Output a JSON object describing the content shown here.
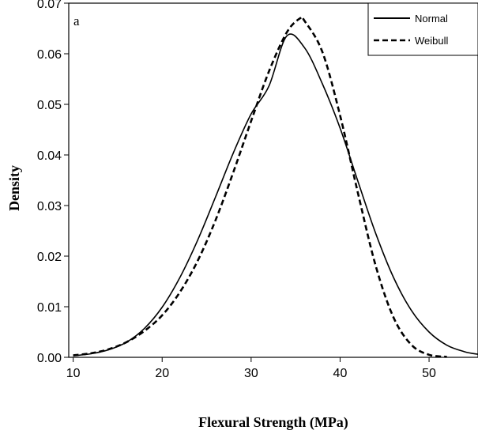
{
  "chart_data": {
    "type": "line",
    "title": "",
    "panel_label": "a",
    "xlabel": "Flexural Strength (MPa)",
    "ylabel": "Density",
    "xlim": [
      9.5,
      55.5
    ],
    "ylim": [
      0,
      0.07
    ],
    "x_ticks": [
      10,
      20,
      30,
      40,
      50
    ],
    "x_tick_labels": [
      "10",
      "20",
      "30",
      "40",
      "50"
    ],
    "y_ticks": [
      0,
      0.01,
      0.02,
      0.03,
      0.04,
      0.05,
      0.06,
      0.07
    ],
    "y_tick_labels": [
      "0.00",
      "0.01",
      "0.02",
      "0.03",
      "0.04",
      "0.05",
      "0.06",
      "0.07"
    ],
    "grid": false,
    "legend_position": "top-right",
    "series": [
      {
        "name": "Normal",
        "style": "solid",
        "color": "#000000",
        "x": [
          10,
          12,
          14,
          16,
          18,
          20,
          22,
          24,
          26,
          28,
          30,
          32,
          34,
          36,
          38,
          40,
          42,
          44,
          46,
          48,
          50,
          52,
          54,
          55.5
        ],
        "y": [
          0.0003,
          0.0007,
          0.0015,
          0.003,
          0.0057,
          0.0099,
          0.0158,
          0.0232,
          0.0317,
          0.0404,
          0.0481,
          0.0536,
          0.0635,
          0.0612,
          0.0541,
          0.0453,
          0.0348,
          0.0245,
          0.0158,
          0.0093,
          0.005,
          0.0024,
          0.0011,
          0.0006
        ]
      },
      {
        "name": "Weibull",
        "style": "dashed",
        "color": "#000000",
        "x": [
          10,
          12,
          14,
          16,
          18,
          20,
          22,
          24,
          26,
          28,
          30,
          32,
          34,
          35.5,
          36,
          38,
          40,
          42,
          44,
          46,
          48,
          50,
          52
        ],
        "y": [
          0.0004,
          0.0008,
          0.0016,
          0.003,
          0.0052,
          0.0083,
          0.0129,
          0.0191,
          0.0271,
          0.0366,
          0.0467,
          0.0565,
          0.0642,
          0.067,
          0.0665,
          0.0604,
          0.0478,
          0.0325,
          0.0181,
          0.0079,
          0.0025,
          0.0005,
          0.0001
        ]
      }
    ]
  }
}
